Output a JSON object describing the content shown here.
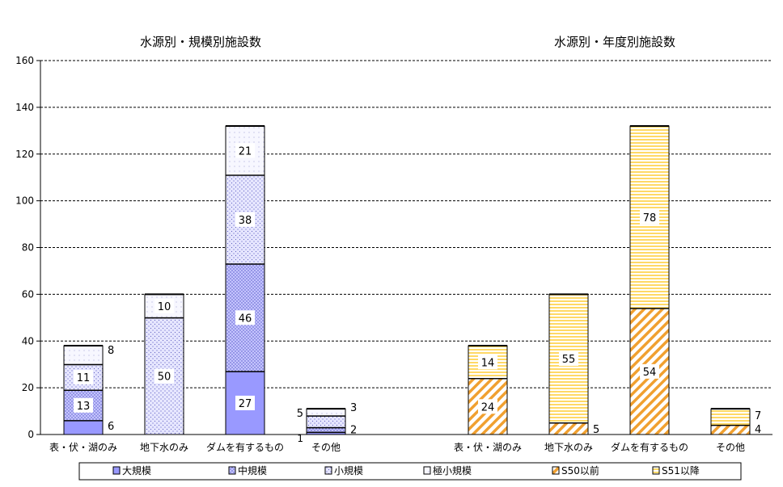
{
  "chart_data": {
    "type": "bar",
    "stacked": true,
    "ylim": [
      0,
      160
    ],
    "yticks": [
      0,
      20,
      40,
      60,
      80,
      100,
      120,
      140,
      160
    ],
    "grid": "horizontal dashed",
    "legend_position": "bottom",
    "categories": [
      "表・伏・湖のみ",
      "地下水のみ",
      "ダムを有するもの",
      "その他"
    ],
    "groups": [
      {
        "title": "水源別・規模別施設数",
        "series": [
          {
            "name": "大規模",
            "values": [
              6,
              0,
              27,
              1
            ],
            "color": "#9999ff",
            "pattern": "solid"
          },
          {
            "name": "中規模",
            "values": [
              13,
              0,
              46,
              2
            ],
            "color": "#9999ff",
            "pattern": "dots-dense"
          },
          {
            "name": "小規模",
            "values": [
              11,
              50,
              38,
              5
            ],
            "color": "#9999ff",
            "pattern": "dots-sparse"
          },
          {
            "name": "極小規模",
            "values": [
              8,
              10,
              21,
              3
            ],
            "color": "#9999ff",
            "pattern": "dots-faint"
          }
        ]
      },
      {
        "title": "水源別・年度別施設数",
        "series": [
          {
            "name": "S50以前",
            "values": [
              24,
              5,
              54,
              4
            ],
            "color": "#f0a030",
            "pattern": "diagonal"
          },
          {
            "name": "S51以降",
            "values": [
              14,
              55,
              78,
              7
            ],
            "color": "#ffd966",
            "pattern": "horizontal"
          }
        ]
      }
    ],
    "legend": [
      "大規模",
      "中規模",
      "小規模",
      "極小規模",
      "S50以前",
      "S51以降"
    ]
  }
}
